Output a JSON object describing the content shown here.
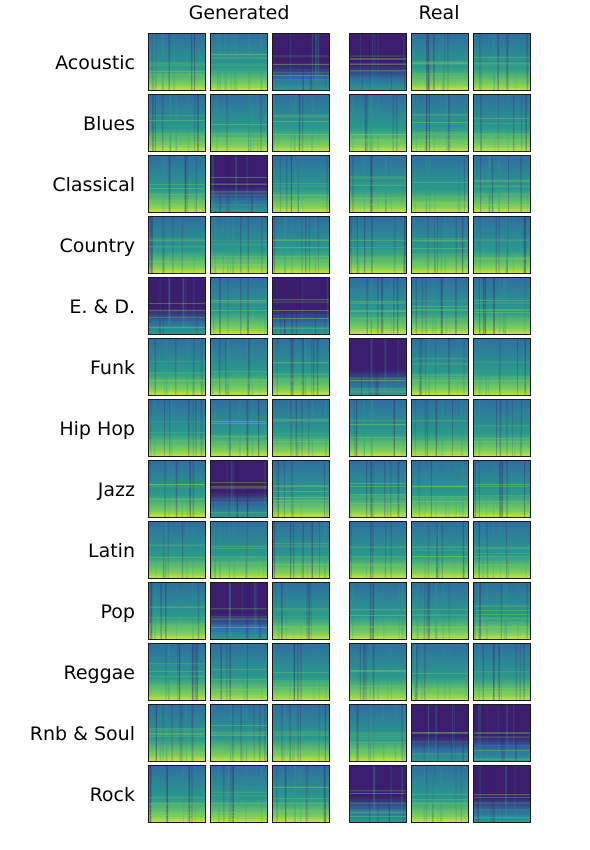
{
  "columns": {
    "generated": "Generated",
    "real": "Real"
  },
  "genres": [
    "Acoustic",
    "Blues",
    "Classical",
    "Country",
    "E. & D.",
    "Funk",
    "Hip Hop",
    "Jazz",
    "Latin",
    "Pop",
    "Reggae",
    "Rnb & Soul",
    "Rock"
  ],
  "palette": {
    "dark": "#3b1e6e",
    "mid": "#2f6fa0",
    "teal": "#2a9a8c",
    "light": "#7ccf5a",
    "bright": "#c9e23a"
  },
  "tiles_per_group": 3
}
